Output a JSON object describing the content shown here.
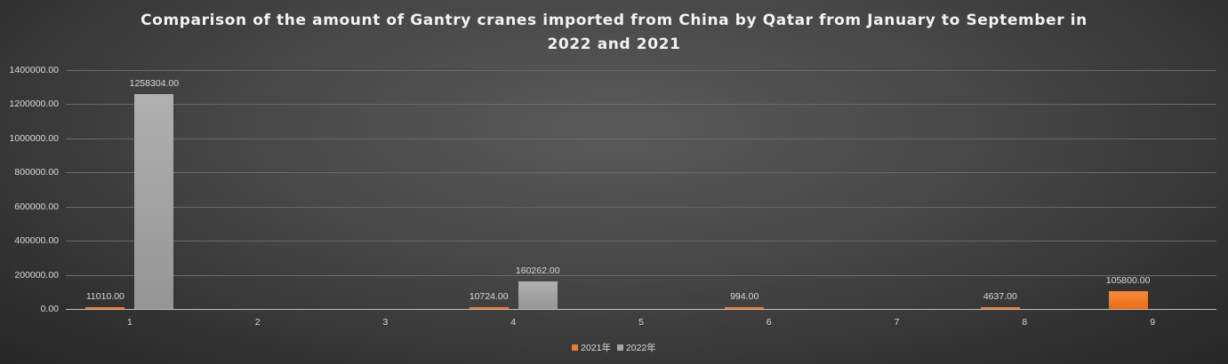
{
  "chart_data": {
    "type": "bar",
    "title": "Comparison of the amount of Gantry cranes imported from China by Qatar from January to September in 2022 and 2021",
    "title_lines": [
      "Comparison of the amount of Gantry cranes imported from China by Qatar from January to September in",
      "2022 and 2021"
    ],
    "xlabel": "",
    "ylabel": "",
    "categories": [
      "1",
      "2",
      "3",
      "4",
      "5",
      "6",
      "7",
      "8",
      "9"
    ],
    "series": [
      {
        "name": "2021年",
        "color": "#ED7D31",
        "values": [
          11010,
          null,
          null,
          10724,
          null,
          994,
          null,
          4637,
          105800
        ],
        "labels": [
          "11010.00",
          "",
          "",
          "10724.00",
          "",
          "994.00",
          "",
          "4637.00",
          "105800.00"
        ]
      },
      {
        "name": "2022年",
        "color": "#A5A5A5",
        "values": [
          1258304,
          null,
          null,
          160262,
          null,
          null,
          null,
          null,
          null
        ],
        "labels": [
          "1258304.00",
          "",
          "",
          "160262.00",
          "",
          "",
          "",
          "",
          ""
        ]
      }
    ],
    "ylim": [
      0,
      1400000
    ],
    "yticks": [
      "0.00",
      "200000.00",
      "400000.00",
      "600000.00",
      "800000.00",
      "1000000.00",
      "1200000.00",
      "1400000.00"
    ],
    "grid": true,
    "legend_position": "bottom"
  }
}
